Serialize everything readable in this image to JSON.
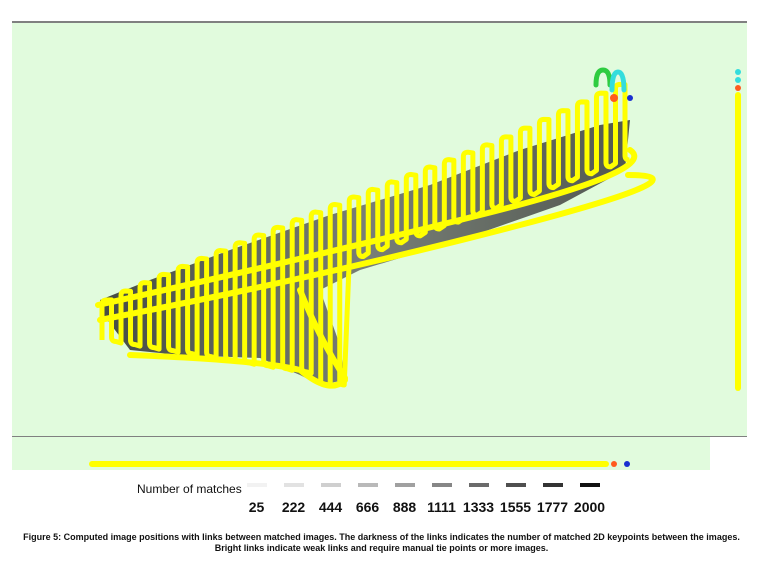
{
  "legend": {
    "title": "Number of matches",
    "items": [
      {
        "label": "25",
        "color": "#f2f2f2"
      },
      {
        "label": "222",
        "color": "#e2e2e2"
      },
      {
        "label": "444",
        "color": "#cfcfcf"
      },
      {
        "label": "666",
        "color": "#b9b9b9"
      },
      {
        "label": "888",
        "color": "#a0a0a0"
      },
      {
        "label": "1111",
        "color": "#868686"
      },
      {
        "label": "1333",
        "color": "#6b6b6b"
      },
      {
        "label": "1555",
        "color": "#4f4f4f"
      },
      {
        "label": "1777",
        "color": "#333333"
      },
      {
        "label": "2000",
        "color": "#111111"
      }
    ]
  },
  "caption": "Figure 5: Computed image positions with links between matched images. The darkness of the links indicates the number of matched 2D keypoints between the images. Bright links indicate weak links and require manual tie points or more images.",
  "colors": {
    "background": "#e1fbdd",
    "camera_track": "#ffff00",
    "link_dark": "#222222",
    "accent_green": "#2ecc40",
    "accent_cyan": "#33dddd",
    "accent_orange": "#ff5a1e",
    "accent_blue": "#1a2fd0"
  }
}
